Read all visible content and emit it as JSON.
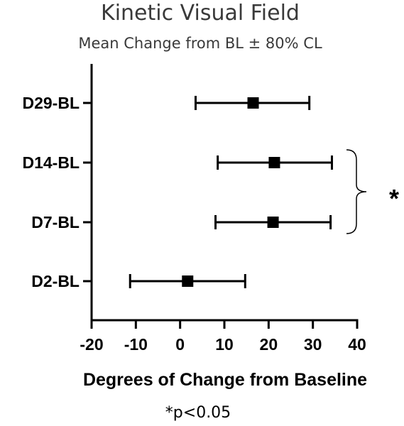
{
  "chart_data": {
    "type": "scatter",
    "title": "Kinetic Visual Field",
    "subtitle": "Mean Change from BL ± 80% CL",
    "xlabel": "Degrees of Change from Baseline",
    "ylabel": "",
    "xlim": [
      -20,
      40
    ],
    "xticks": [
      -20,
      -10,
      0,
      10,
      20,
      30,
      40
    ],
    "xtick_labels": [
      "-20",
      "-10",
      "0",
      "10",
      "20",
      "30",
      "40"
    ],
    "grid": false,
    "legend": "none",
    "marker": "square",
    "color": "#000000",
    "points": [
      {
        "category": "D29-BL",
        "mean": 16.5,
        "lower": 3.5,
        "upper": 29.2
      },
      {
        "category": "D14-BL",
        "mean": 21.3,
        "lower": 8.5,
        "upper": 34.3
      },
      {
        "category": "D7-BL",
        "mean": 21.0,
        "lower": 8.0,
        "upper": 34.0
      },
      {
        "category": "D2-BL",
        "mean": 1.7,
        "lower": -11.3,
        "upper": 14.7
      }
    ],
    "annotation": {
      "bracket_between": [
        "D14-BL",
        "D7-BL"
      ],
      "symbol": "*"
    },
    "footnote": "*p<0.05"
  }
}
